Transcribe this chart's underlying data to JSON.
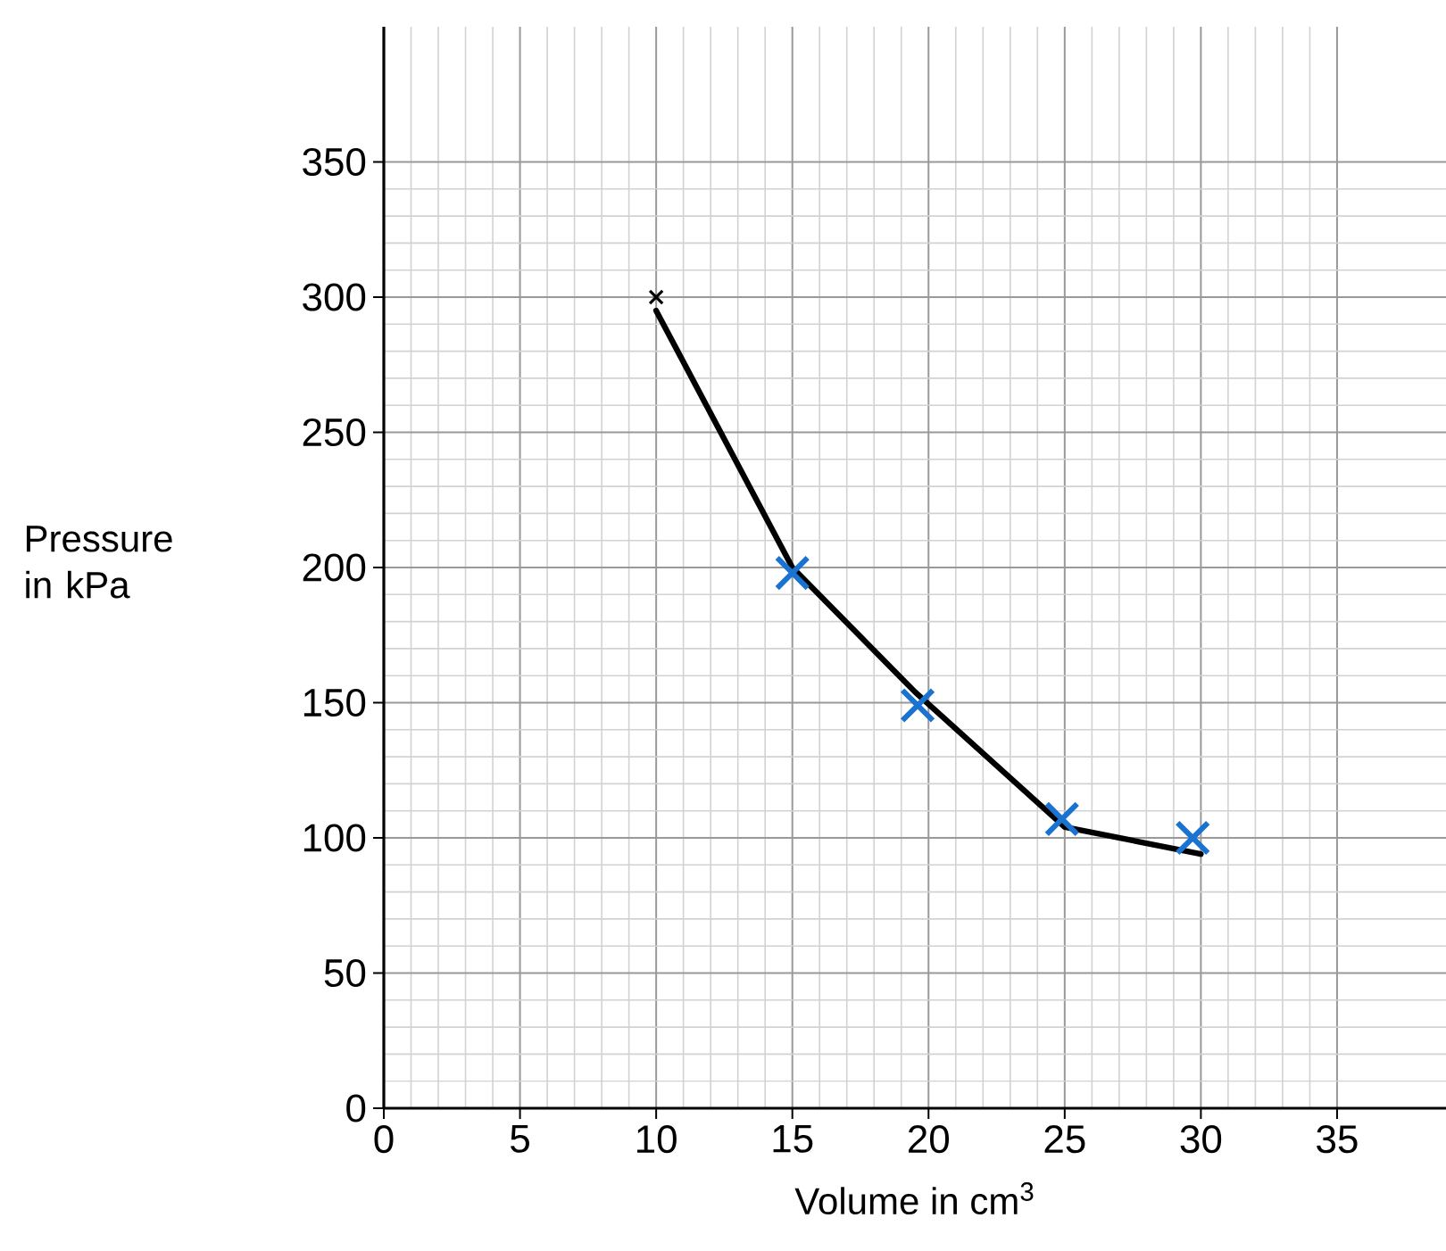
{
  "chart_data": {
    "type": "line",
    "xlabel": "Volume in cm$^{3}$",
    "ylabel": "Pressure in kPa",
    "xlim": [
      0,
      39
    ],
    "ylim": [
      0,
      400
    ],
    "xticks": [
      0,
      5,
      10,
      15,
      20,
      25,
      30,
      35
    ],
    "yticks": [
      0,
      50,
      100,
      150,
      200,
      250,
      300,
      350
    ],
    "grid": true,
    "series": [
      {
        "color": "#000000",
        "marker": "none",
        "line_style": "solid",
        "x": [
          10,
          15,
          19.5,
          25,
          30
        ],
        "values": [
          295,
          200,
          154,
          104,
          94
        ]
      },
      {
        "type": "scatter",
        "color": "#000000",
        "marker": "cross",
        "x": [
          10
        ],
        "values": [
          300
        ]
      },
      {
        "type": "scatter",
        "color": "#1a73d0",
        "marker": "cross",
        "x": [
          15,
          19.6,
          24.9,
          29.7
        ],
        "values": [
          198,
          149,
          107,
          100
        ]
      }
    ]
  }
}
